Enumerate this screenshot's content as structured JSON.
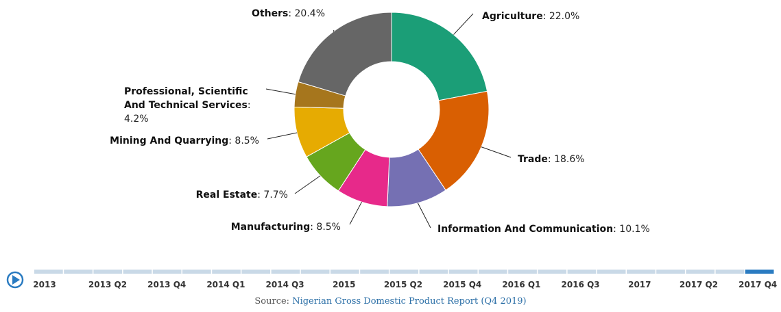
{
  "chart_data": {
    "type": "donut",
    "categories": [
      "Agriculture",
      "Trade",
      "Information And Communication",
      "Manufacturing",
      "Real Estate",
      "Mining And Quarrying",
      "Professional, Scientific And Technical Services",
      "Others"
    ],
    "values": [
      22.0,
      18.6,
      10.1,
      8.5,
      7.7,
      8.5,
      4.2,
      20.4
    ],
    "value_labels": [
      "22.0%",
      "18.6%",
      "10.1%",
      "8.5%",
      "7.7%",
      "8.5%",
      "4.2%",
      "20.4%"
    ],
    "colors": [
      "#1b9e77",
      "#d95f02",
      "#7570b3",
      "#e7298a",
      "#66a61e",
      "#e6ab02",
      "#a6761d",
      "#666666"
    ]
  },
  "timeline": {
    "labels": [
      "2013",
      "2013 Q2",
      "2013 Q4",
      "2014 Q1",
      "2014 Q3",
      "2015",
      "2015 Q2",
      "2015 Q4",
      "2016 Q1",
      "2016 Q3",
      "2017",
      "2017 Q2",
      "2017 Q4"
    ]
  },
  "source": {
    "prefix": "Source:",
    "link": "Nigerian Gross Domestic Product Report (Q4 2019)"
  }
}
